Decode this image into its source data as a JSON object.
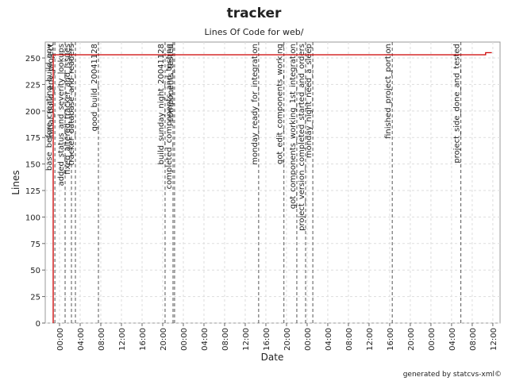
{
  "chart_data": {
    "type": "line",
    "title": "tracker",
    "subtitle": "Lines Of Code for web/",
    "x_label": "Date",
    "y_label": "Lines",
    "series": [
      {
        "color": "#cc0000",
        "x": [
          -1.23,
          -1.23,
          82.6,
          82.6,
          83.8
        ],
        "values": [
          0,
          253,
          253,
          255,
          255
        ]
      }
    ],
    "xlim": [
      -2.77,
      85.4
    ],
    "xticks": [
      {
        "value": 0,
        "label": "00:00"
      },
      {
        "value": 4,
        "label": "04:00"
      },
      {
        "value": 8,
        "label": "08:00"
      },
      {
        "value": 12,
        "label": "12:00"
      },
      {
        "value": 16,
        "label": "16:00"
      },
      {
        "value": 20,
        "label": "20:00"
      },
      {
        "value": 24,
        "label": "00:00"
      },
      {
        "value": 28,
        "label": "04:00"
      },
      {
        "value": 32,
        "label": "08:00"
      },
      {
        "value": 36,
        "label": "12:00"
      },
      {
        "value": 40,
        "label": "16:00"
      },
      {
        "value": 44,
        "label": "20:00"
      },
      {
        "value": 48,
        "label": "00:00"
      },
      {
        "value": 52,
        "label": "04:00"
      },
      {
        "value": 56,
        "label": "08:00"
      },
      {
        "value": 60,
        "label": "12:00"
      },
      {
        "value": 64,
        "label": "16:00"
      },
      {
        "value": 68,
        "label": "20:00"
      },
      {
        "value": 72,
        "label": "00:00"
      },
      {
        "value": 76,
        "label": "04:00"
      },
      {
        "value": 80,
        "label": "08:00"
      },
      {
        "value": 84,
        "label": "12:00"
      }
    ],
    "ylim": [
      0,
      265
    ],
    "yticks": [
      0,
      25,
      50,
      75,
      100,
      125,
      150,
      175,
      200,
      225,
      250
    ],
    "grid": true,
    "annotations": [
      {
        "x": -1.23,
        "label": "base_before_creating_build_env"
      },
      {
        "x": -0.9,
        "label": "initial_build_env_project"
      },
      {
        "x": 1.08,
        "label": "added_status_and_severity_lookups"
      },
      {
        "x": 2.31,
        "label": "fixed_altered_tracker_and_issues"
      },
      {
        "x": 3.08,
        "label": "tracker_database_and_readers"
      },
      {
        "x": 7.54,
        "label": "good_build_20041128"
      },
      {
        "x": 20.46,
        "label": "build_sunday_night_20041128"
      },
      {
        "x": 22.0,
        "label": "completed_components_and_testing"
      },
      {
        "x": 22.3,
        "label": "components_tested"
      },
      {
        "x": 38.6,
        "label": "monday_ready_for_integration"
      },
      {
        "x": 43.5,
        "label": "got_edit_components_working"
      },
      {
        "x": 46.0,
        "label": "got_components_working_1st_integration"
      },
      {
        "x": 47.7,
        "label": "project_version_completed_started_and_orders"
      },
      {
        "x": 49.1,
        "label": "monday_night_need_a_sleep"
      },
      {
        "x": 64.5,
        "label": "finished_project_portion"
      },
      {
        "x": 77.8,
        "label": "project_side_done_and_tested"
      }
    ]
  },
  "footer": "generated by statcvs-xml©"
}
